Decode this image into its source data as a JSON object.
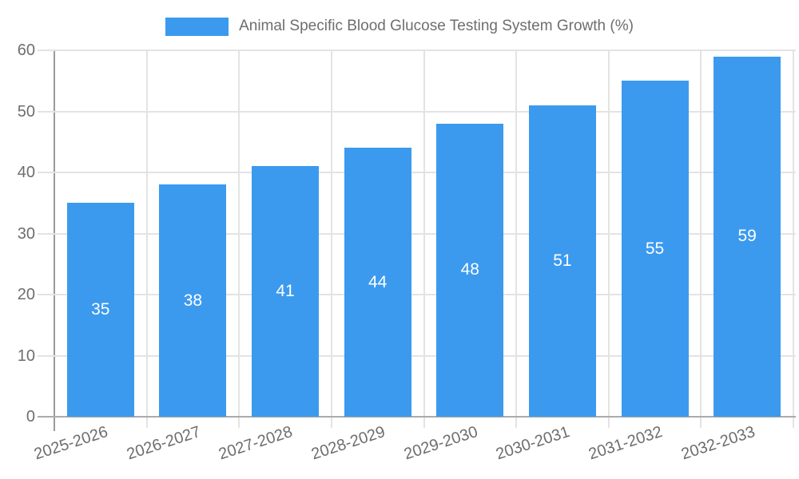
{
  "chart_data": {
    "type": "bar",
    "title": "Animal Specific Blood Glucose Testing System Growth (%)",
    "categories": [
      "2025-2026",
      "2026-2027",
      "2027-2028",
      "2028-2029",
      "2029-2030",
      "2030-2031",
      "2031-2032",
      "2032-2033"
    ],
    "values": [
      35,
      38,
      41,
      44,
      48,
      51,
      55,
      59
    ],
    "series": [
      {
        "name": "Animal Specific Blood Glucose Testing System Growth (%)",
        "values": [
          35,
          38,
          41,
          44,
          48,
          51,
          55,
          59
        ]
      }
    ],
    "xlabel": "",
    "ylabel": "",
    "ylim": [
      0,
      60
    ],
    "ytick_step": 10,
    "yticks": [
      0,
      10,
      20,
      30,
      40,
      50,
      60
    ],
    "grid": true,
    "legend_position": "top",
    "bar_color": "#3b9aee",
    "bar_value_label_color": "#ffffff",
    "axis_text_color": "#6e6e6e",
    "grid_color": "#e3e3e3",
    "axis_line_color": "#ababab",
    "y_axis_line_color": "#9a9a9a"
  }
}
